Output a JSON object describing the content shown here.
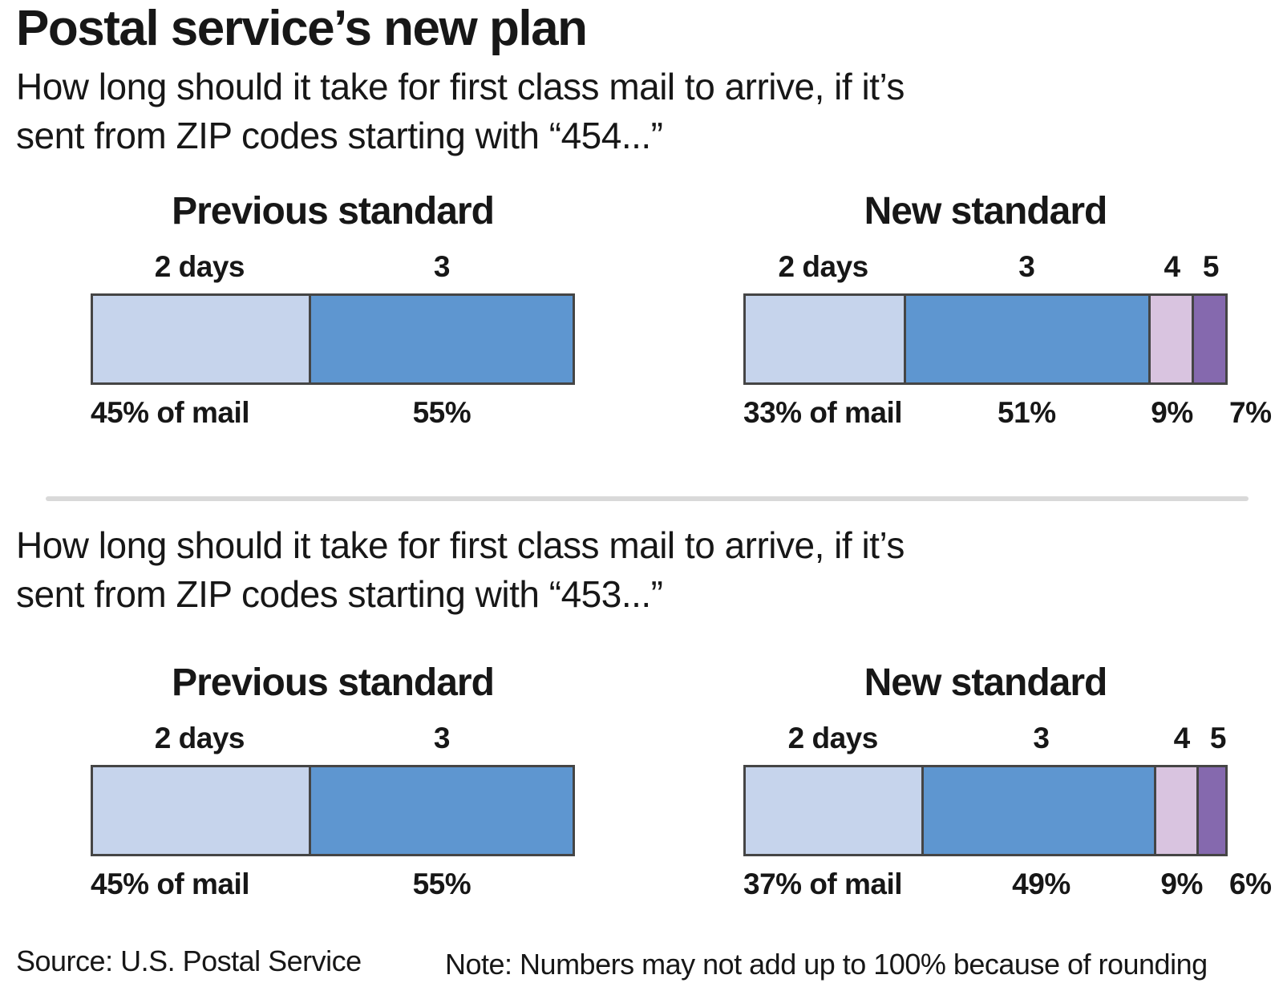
{
  "title": "Postal service’s new plan",
  "sections": [
    {
      "question_line1": "How long should it take for first class mail to arrive, if it’s",
      "question_line2": "sent from ZIP codes starting with “454...”",
      "charts": [
        {
          "heading": "Previous standard"
        },
        {
          "heading": "New standard"
        }
      ]
    },
    {
      "question_line1": "How long should it take for first class mail to arrive, if it’s",
      "question_line2": "sent from ZIP codes starting with “453...”",
      "charts": [
        {
          "heading": "Previous standard"
        },
        {
          "heading": "New standard"
        }
      ]
    }
  ],
  "footer": {
    "source": "Source: U.S. Postal Service",
    "note": "Note: Numbers may not add up to 100% because of rounding"
  },
  "colors": {
    "day2": "#c6d4ec",
    "day3": "#5e96d0",
    "day4": "#d9c4e0",
    "day5": "#8569ae",
    "bar_border": "#454545",
    "divider": "#d9d9d9",
    "text": "#171717"
  },
  "chart_data": [
    {
      "type": "bar",
      "subtype": "stacked-horizontal-100pct",
      "group": "ZIP codes starting with 454",
      "title": "Previous standard",
      "categories": [
        "2 days",
        "3"
      ],
      "values": [
        45,
        55
      ],
      "value_labels": [
        "45% of mail",
        "55%"
      ],
      "unit": "% of mail",
      "colors": [
        "#c6d4ec",
        "#5e96d0"
      ],
      "xlim": [
        0,
        100
      ],
      "legend": "none",
      "grid": false
    },
    {
      "type": "bar",
      "subtype": "stacked-horizontal-100pct",
      "group": "ZIP codes starting with 454",
      "title": "New standard",
      "categories": [
        "2 days",
        "3",
        "4",
        "5"
      ],
      "values": [
        33,
        51,
        9,
        7
      ],
      "value_labels": [
        "33% of mail",
        "51%",
        "9%",
        "7%"
      ],
      "unit": "% of mail",
      "colors": [
        "#c6d4ec",
        "#5e96d0",
        "#d9c4e0",
        "#8569ae"
      ],
      "xlim": [
        0,
        100
      ],
      "legend": "none",
      "grid": false
    },
    {
      "type": "bar",
      "subtype": "stacked-horizontal-100pct",
      "group": "ZIP codes starting with 453",
      "title": "Previous standard",
      "categories": [
        "2 days",
        "3"
      ],
      "values": [
        45,
        55
      ],
      "value_labels": [
        "45% of mail",
        "55%"
      ],
      "unit": "% of mail",
      "colors": [
        "#c6d4ec",
        "#5e96d0"
      ],
      "xlim": [
        0,
        100
      ],
      "legend": "none",
      "grid": false
    },
    {
      "type": "bar",
      "subtype": "stacked-horizontal-100pct",
      "group": "ZIP codes starting with 453",
      "title": "New standard",
      "categories": [
        "2 days",
        "3",
        "4",
        "5"
      ],
      "values": [
        37,
        49,
        9,
        6
      ],
      "value_labels": [
        "37% of mail",
        "49%",
        "9%",
        "6%"
      ],
      "unit": "% of mail",
      "colors": [
        "#c6d4ec",
        "#5e96d0",
        "#d9c4e0",
        "#8569ae"
      ],
      "xlim": [
        0,
        100
      ],
      "legend": "none",
      "grid": false
    }
  ]
}
